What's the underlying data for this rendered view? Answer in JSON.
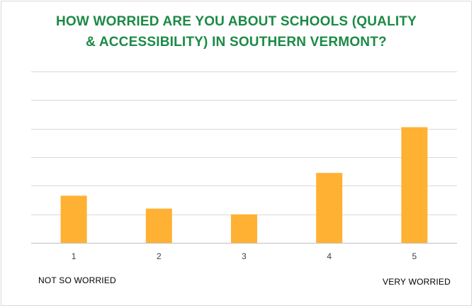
{
  "chart_data": {
    "type": "bar",
    "title": "HOW WORRIED ARE YOU ABOUT SCHOOLS (QUALITY & ACCESSIBILITY) IN SOUTHERN VERMONT?",
    "title_lines": [
      "HOW WORRIED ARE YOU ABOUT SCHOOLS (QUALITY",
      "& ACCESSIBILITY) IN SOUTHERN VERMONT?"
    ],
    "categories": [
      "1",
      "2",
      "3",
      "4",
      "5"
    ],
    "values": [
      16.5,
      12,
      10,
      24.5,
      40.5
    ],
    "ylim": [
      0,
      60
    ],
    "gridlines": true,
    "y_tick_step": 10,
    "show_y_tick_labels": false,
    "scale_labels": {
      "left": "NOT SO WORRIED",
      "right": "VERY WORRIED"
    },
    "colors": {
      "bar": "#ffb133",
      "title": "#1b8a45",
      "grid": "#d9d9d9",
      "axis": "#bfbfbf"
    }
  }
}
